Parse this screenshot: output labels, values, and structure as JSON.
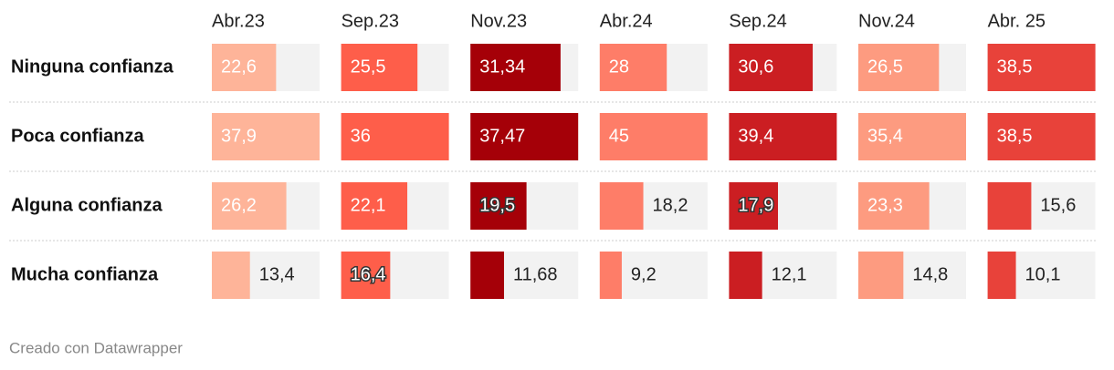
{
  "chart_data": {
    "type": "bar",
    "categories": [
      "Ninguna confianza",
      "Poca confianza",
      "Alguna confianza",
      "Mucha confianza"
    ],
    "series": [
      {
        "name": "Abr.23",
        "color": "#feb499",
        "values": [
          22.6,
          37.9,
          26.2,
          13.4
        ],
        "value_labels": [
          "22,6",
          "37,9",
          "26,2",
          "13,4"
        ]
      },
      {
        "name": "Sep.23",
        "color": "#fe5e4a",
        "values": [
          25.5,
          36,
          22.1,
          16.4
        ],
        "value_labels": [
          "25,5",
          "36",
          "22,1",
          "16,4"
        ]
      },
      {
        "name": "Nov.23",
        "color": "#a50008",
        "values": [
          31.34,
          37.47,
          19.5,
          11.68
        ],
        "value_labels": [
          "31,34",
          "37,47",
          "19,5",
          "11,68"
        ]
      },
      {
        "name": "Abr.24",
        "color": "#fe7d68",
        "values": [
          28,
          45,
          18.2,
          9.2
        ],
        "value_labels": [
          "28",
          "45",
          "18,2",
          "9,2"
        ]
      },
      {
        "name": "Sep.24",
        "color": "#cb1e22",
        "values": [
          30.6,
          39.4,
          17.9,
          12.1
        ],
        "value_labels": [
          "30,6",
          "39,4",
          "17,9",
          "12,1"
        ]
      },
      {
        "name": "Nov.24",
        "color": "#fd9b80",
        "values": [
          26.5,
          35.4,
          23.3,
          14.8
        ],
        "value_labels": [
          "26,5",
          "35,4",
          "23,3",
          "14,8"
        ]
      },
      {
        "name": "Abr. 25",
        "color": "#e8423a",
        "values": [
          38.5,
          38.5,
          15.6,
          10.1
        ],
        "value_labels": [
          "38,5",
          "38,5",
          "15,6",
          "10,1"
        ]
      }
    ],
    "credit": "Creado con Datawrapper"
  }
}
